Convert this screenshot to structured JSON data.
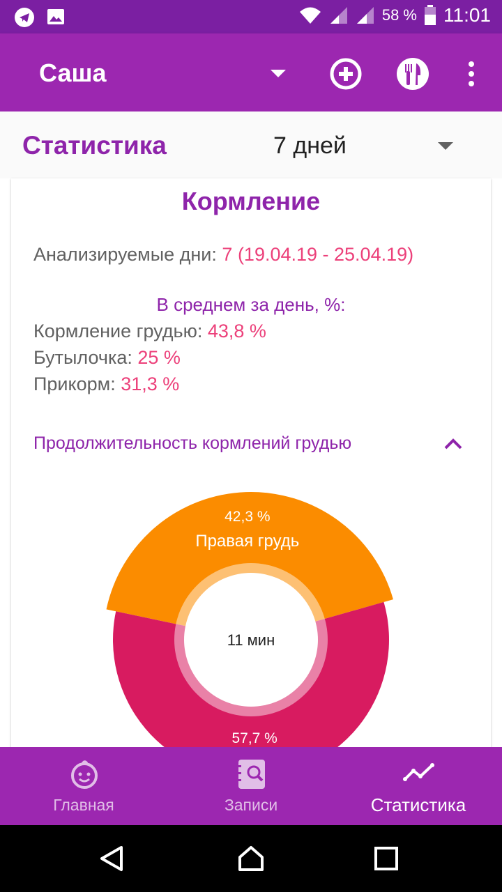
{
  "status_bar": {
    "battery": "58 %",
    "time": "11:01",
    "icons": [
      "telegram-icon",
      "image-icon",
      "wifi-icon",
      "signal-icon",
      "signal-icon",
      "battery-icon"
    ]
  },
  "app_bar": {
    "profile_name": "Саша",
    "icons": [
      "add-circle-icon",
      "cutlery-icon",
      "more-vert-icon"
    ]
  },
  "stats": {
    "title": "Статистика",
    "period": "7 дней"
  },
  "card": {
    "title": "Кормление",
    "days_label": "Анализируемые дни:",
    "days_value": "7 (19.04.19 - 25.04.19)",
    "avg_title": "В среднем за день, %:",
    "breast_label": "Кормление грудью:",
    "breast_value": "43,8 %",
    "bottle_label": "Бутылочка:",
    "bottle_value": "25 %",
    "solid_label": "Прикорм:",
    "solid_value": "31,3 %",
    "section_title": "Продолжительность кормлений грудью"
  },
  "chart_data": {
    "type": "pie",
    "center_label": "11 мин",
    "slices": [
      {
        "label": "Правая грудь",
        "value": 42.3,
        "value_label": "42,3 %",
        "color": "#fb8c00"
      },
      {
        "label": "",
        "value": 57.7,
        "value_label": "57,7 %",
        "color": "#d81b60"
      }
    ]
  },
  "bottom_nav": {
    "items": [
      {
        "label": "Главная",
        "icon": "baby-face-icon"
      },
      {
        "label": "Записи",
        "icon": "notebook-search-icon"
      },
      {
        "label": "Статистика",
        "icon": "trend-line-icon"
      }
    ]
  },
  "colors": {
    "primary": "#9c27b0",
    "primary_dark": "#7b1fa2",
    "accent": "#ec407a",
    "text_purple": "#8e24aa"
  }
}
